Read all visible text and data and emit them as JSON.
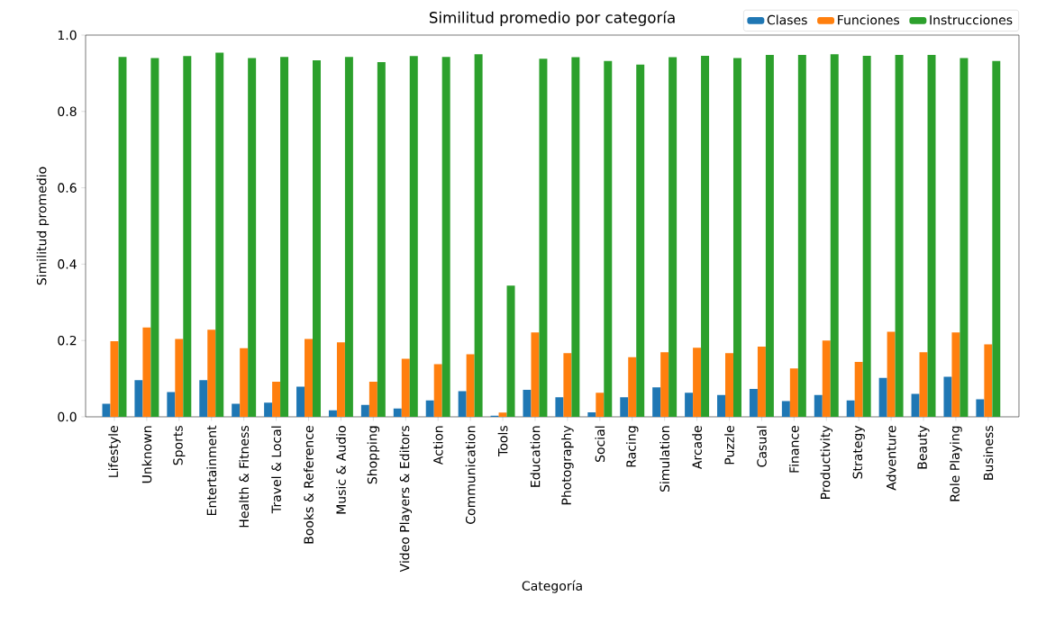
{
  "chart_data": {
    "type": "bar",
    "title": "Similitud promedio por categoría",
    "xlabel": "Categoría",
    "ylabel": "Similitud promedio",
    "categories": [
      "Lifestyle",
      "Unknown",
      "Sports",
      "Entertainment",
      "Health & Fitness",
      "Travel & Local",
      "Books & Reference",
      "Music & Audio",
      "Shopping",
      "Video Players & Editors",
      "Action",
      "Communication",
      "Tools",
      "Education",
      "Photography",
      "Social",
      "Racing",
      "Simulation",
      "Arcade",
      "Puzzle",
      "Casual",
      "Finance",
      "Productivity",
      "Strategy",
      "Adventure",
      "Beauty",
      "Role Playing",
      "Business"
    ],
    "series": [
      {
        "name": "Clases",
        "color": "#1f77b4",
        "values": [
          0.034,
          0.096,
          0.065,
          0.096,
          0.034,
          0.037,
          0.079,
          0.017,
          0.031,
          0.022,
          0.043,
          0.067,
          0.003,
          0.071,
          0.051,
          0.012,
          0.051,
          0.077,
          0.063,
          0.057,
          0.073,
          0.041,
          0.057,
          0.043,
          0.102,
          0.06,
          0.105,
          0.046
        ]
      },
      {
        "name": "Funciones",
        "color": "#ff7f0e",
        "values": [
          0.198,
          0.234,
          0.204,
          0.228,
          0.18,
          0.092,
          0.204,
          0.195,
          0.092,
          0.152,
          0.138,
          0.164,
          0.011,
          0.221,
          0.167,
          0.063,
          0.156,
          0.169,
          0.181,
          0.167,
          0.184,
          0.127,
          0.2,
          0.144,
          0.223,
          0.169,
          0.221,
          0.19
        ]
      },
      {
        "name": "Instrucciones",
        "color": "#2ca02c",
        "values": [
          0.943,
          0.94,
          0.945,
          0.954,
          0.94,
          0.943,
          0.934,
          0.943,
          0.929,
          0.945,
          0.943,
          0.95,
          0.344,
          0.938,
          0.942,
          0.932,
          0.923,
          0.942,
          0.946,
          0.94,
          0.948,
          0.948,
          0.95,
          0.946,
          0.948,
          0.948,
          0.94,
          0.932
        ]
      }
    ],
    "ylim": [
      0,
      1.0
    ],
    "yticks": [
      {
        "value": 0,
        "label": "0.0"
      },
      0.2,
      0.4,
      0.6,
      0.8,
      {
        "value": 1.0,
        "label": "1.0"
      }
    ],
    "legend": "top right"
  }
}
